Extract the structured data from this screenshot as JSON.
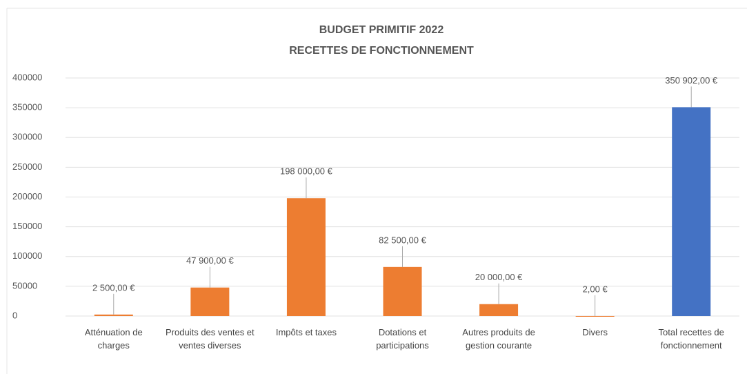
{
  "chart_data": {
    "type": "bar",
    "title": "BUDGET PRIMITIF 2022",
    "subtitle": "RECETTES DE FONCTIONNEMENT",
    "categories": [
      "Atténuation de charges",
      "Produits des ventes et ventes diverses",
      "Impôts et taxes",
      "Dotations et participations",
      "Autres produits de gestion courante",
      "Divers",
      "Total recettes de fonctionnement"
    ],
    "values": [
      2500,
      47900,
      198000,
      82500,
      20000,
      2,
      350902
    ],
    "value_labels": [
      "2 500,00 €",
      "47 900,00 €",
      "198 000,00 €",
      "82 500,00 €",
      "20 000,00 €",
      "2,00 €",
      "350 902,00 €"
    ],
    "colors": [
      "#ed7d31",
      "#ed7d31",
      "#ed7d31",
      "#ed7d31",
      "#ed7d31",
      "#ed7d31",
      "#4472c4"
    ],
    "ylim": [
      0,
      400000
    ],
    "yticks": [
      0,
      50000,
      100000,
      150000,
      200000,
      250000,
      300000,
      350000,
      400000
    ],
    "grid": true
  }
}
